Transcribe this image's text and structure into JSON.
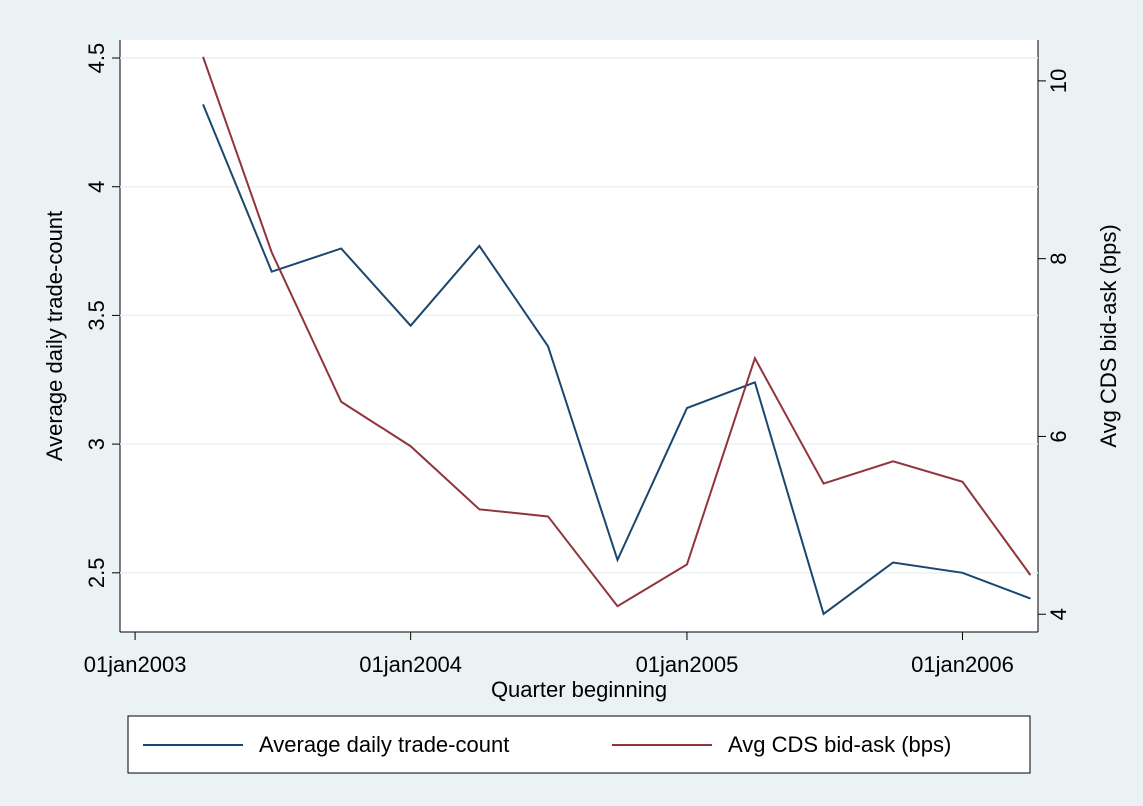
{
  "chart_data": {
    "type": "line",
    "x_label": "Quarter beginning",
    "y_label": "Average daily trade-count",
    "y2_label": "Avg CDS bid-ask (bps)",
    "x": [
      "2003-04-01",
      "2003-07-01",
      "2003-10-01",
      "2004-01-01",
      "2004-04-01",
      "2004-07-01",
      "2004-10-01",
      "2005-01-01",
      "2005-04-01",
      "2005-07-01",
      "2005-10-01",
      "2006-01-01",
      "2006-04-01"
    ],
    "series": [
      {
        "name": "Average daily trade-count",
        "color": "#1a476f",
        "values": [
          4.32,
          3.67,
          3.76,
          3.46,
          3.77,
          3.38,
          2.55,
          3.14,
          3.24,
          2.34,
          2.54,
          2.5,
          2.4
        ]
      },
      {
        "name": "Avg CDS bid-ask (bps)",
        "color": "#90353b",
        "axis": "y2",
        "values": [
          10.27,
          8.07,
          6.39,
          5.89,
          5.18,
          5.1,
          4.09,
          4.56,
          6.88,
          5.47,
          5.72,
          5.49,
          4.44
        ]
      }
    ],
    "xlim": [
      "2002-12-12",
      "2006-04-11"
    ],
    "xticks": [
      {
        "value": "2003-01-01",
        "label": "01jan2003"
      },
      {
        "value": "2004-01-01",
        "label": "01jan2004"
      },
      {
        "value": "2005-01-01",
        "label": "01jan2005"
      },
      {
        "value": "2006-01-01",
        "label": "01jan2006"
      }
    ],
    "ylim": [
      2.27,
      4.57
    ],
    "yticks": [
      2.5,
      3,
      3.5,
      4,
      4.5
    ],
    "y2lim": [
      3.8,
      10.46
    ],
    "y2ticks": [
      4,
      6,
      8,
      10
    ],
    "grid": true
  }
}
